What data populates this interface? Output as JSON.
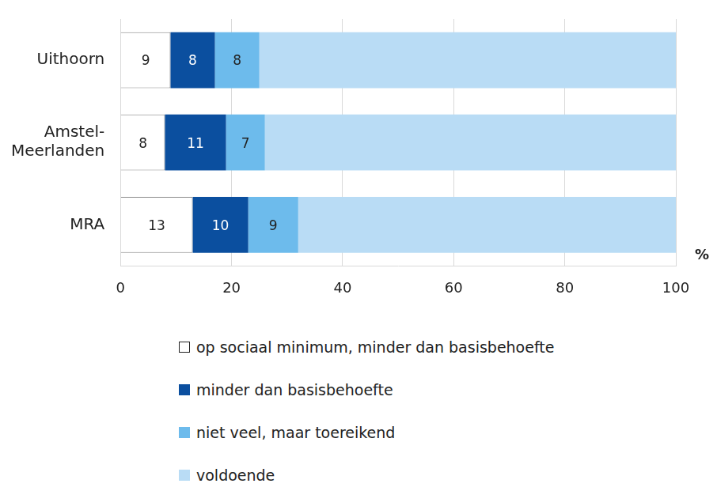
{
  "chart_data": {
    "type": "bar",
    "orientation": "horizontal",
    "stacked": true,
    "categories": [
      "Uithoorn",
      "Amstel-Meerlanden",
      "MRA"
    ],
    "series": [
      {
        "name": "op sociaal minimum, minder dan basisbehoefte",
        "color": "#ffffff",
        "values": [
          9,
          8,
          13
        ],
        "data_labels": true
      },
      {
        "name": "minder dan basisbehoefte",
        "color": "#0b4f9f",
        "values": [
          8,
          11,
          10
        ],
        "data_labels": true
      },
      {
        "name": "niet veel, maar toereikend",
        "color": "#6dbbec",
        "values": [
          8,
          7,
          9
        ],
        "data_labels": true
      },
      {
        "name": "voldoende",
        "color": "#b9dcf5",
        "values": [
          75,
          74,
          68
        ],
        "data_labels": false
      }
    ],
    "xlim": [
      0,
      100
    ],
    "xticks": [
      0,
      20,
      40,
      60,
      80,
      100
    ],
    "xlabel": "%",
    "grid": true,
    "legend": "bottom"
  }
}
